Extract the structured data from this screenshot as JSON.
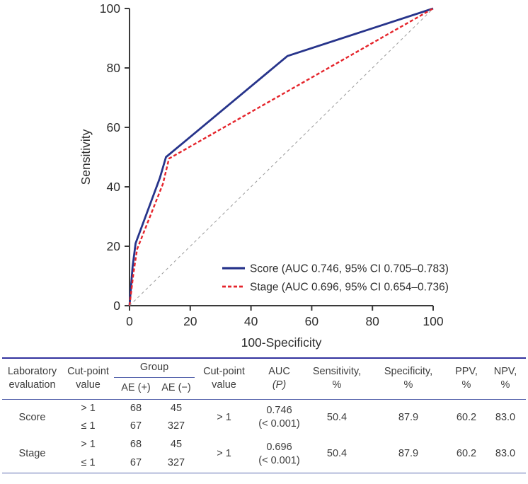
{
  "colors": {
    "score_line": "#27348b",
    "stage_line": "#e5242b",
    "reference_line": "#9a9a9a",
    "axis": "#3a3a3a",
    "table_rule_top": "#32329e",
    "table_rule": "#5a68ae",
    "text": "#3c3c3c"
  },
  "chart_data": {
    "type": "line",
    "title": "",
    "xlabel": "100-Specificity",
    "ylabel": "Sensitivity",
    "xlim": [
      0,
      100
    ],
    "ylim": [
      0,
      100
    ],
    "xticks": [
      0,
      20,
      40,
      60,
      80,
      100
    ],
    "yticks": [
      0,
      20,
      40,
      60,
      80,
      100
    ],
    "grid": false,
    "legend_position": "inside-bottom-right",
    "series": [
      {
        "name": "Score (AUC 0.746, 95% CI 0.705–0.783)",
        "color": "#27348b",
        "style": "solid",
        "width": 2.8,
        "legend": true,
        "points": [
          [
            0,
            0
          ],
          [
            1,
            13
          ],
          [
            2,
            21
          ],
          [
            10,
            43
          ],
          [
            12,
            50
          ],
          [
            52,
            84
          ],
          [
            100,
            100
          ]
        ]
      },
      {
        "name": "Stage (AUC 0.696, 95% CI 0.654–0.736)",
        "color": "#e5242b",
        "style": "dashed",
        "width": 2.4,
        "legend": true,
        "points": [
          [
            0,
            0
          ],
          [
            1.3,
            11
          ],
          [
            2.5,
            19
          ],
          [
            11,
            41
          ],
          [
            13,
            49.5
          ],
          [
            100,
            100
          ]
        ]
      },
      {
        "name": "reference-diagonal",
        "color": "#9a9a9a",
        "style": "dashed-thin",
        "width": 1,
        "legend": false,
        "points": [
          [
            0,
            0
          ],
          [
            100,
            100
          ]
        ]
      }
    ]
  },
  "table": {
    "headers": {
      "lab_eval": "Laboratory\nevaluation",
      "cutpoint": "Cut-point\nvalue",
      "group": "Group",
      "ae_pos": "AE (+)",
      "ae_neg": "AE (−)",
      "cutpoint2": "Cut-point\nvalue",
      "auc_line1": "AUC",
      "auc_p": "(P)",
      "sensitivity": "Sensitivity,\n%",
      "specificity": "Specificity,\n%",
      "ppv": "PPV,\n%",
      "npv": "NPV,\n%"
    },
    "groups": [
      {
        "label": "Score",
        "rows": [
          {
            "cutpoint": "> 1",
            "ae_pos": "68",
            "ae_neg": "45"
          },
          {
            "cutpoint": "≤ 1",
            "ae_pos": "67",
            "ae_neg": "327"
          }
        ],
        "cutpoint2": "> 1",
        "auc": "0.746\n(< 0.001)",
        "sensitivity": "50.4",
        "specificity": "87.9",
        "ppv": "60.2",
        "npv": "83.0"
      },
      {
        "label": "Stage",
        "rows": [
          {
            "cutpoint": "> 1",
            "ae_pos": "68",
            "ae_neg": "45"
          },
          {
            "cutpoint": "≤ 1",
            "ae_pos": "67",
            "ae_neg": "327"
          }
        ],
        "cutpoint2": "> 1",
        "auc": "0.696\n(< 0.001)",
        "sensitivity": "50.4",
        "specificity": "87.9",
        "ppv": "60.2",
        "npv": "83.0"
      }
    ]
  }
}
